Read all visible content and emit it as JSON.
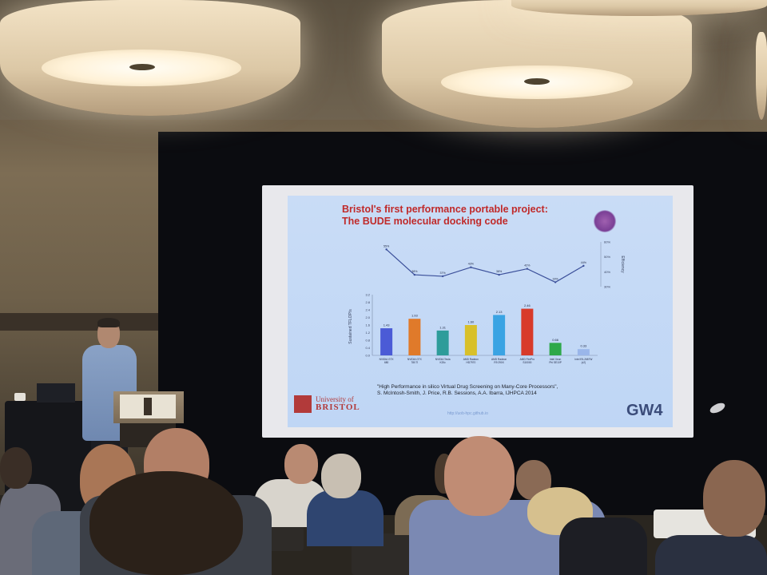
{
  "slide": {
    "title_line1": "Bristol's first performance portable project:",
    "title_line2": "The BUDE molecular docking code",
    "citation_line1": "\"High Performance in silico Virtual Drug Screening on Many-Core Processors\",",
    "citation_line2": "S. McIntosh-Smith, J. Price, R.B. Sessions, A.A. Ibarra, IJHPCA 2014",
    "logo_left_line1": "University of",
    "logo_left_line2": "BRISTOL",
    "logo_right": "GW4",
    "url": "http://uob-hpc.github.io"
  },
  "chart_data": [
    {
      "type": "bar",
      "ylabel": "Sustained TFLOP/s",
      "ylim": [
        0,
        3.2
      ],
      "yticks": [
        "0.0",
        "0.4",
        "0.8",
        "1.2",
        "1.6",
        "2.0",
        "2.4",
        "2.8",
        "3.2"
      ],
      "categories": [
        "NVIDIA GTX 680",
        "NVIDIA GTX 780 Ti",
        "NVIDIA Tesla K20c",
        "AMD Radeon HD7970",
        "AMD Radeon R9 290X",
        "AMD FirePro S10000",
        "Intel Xeon Phi SE10P",
        "Intel E5-2687W (x2)"
      ],
      "values": [
        1.43,
        1.93,
        1.31,
        1.6,
        2.13,
        2.46,
        0.66,
        0.33
      ],
      "labels": [
        "1.43",
        "1.93",
        "1.31",
        "1.60",
        "2.13",
        "2.46",
        "0.66",
        "0.33"
      ],
      "colors": [
        "#4b5bd6",
        "#e07a2a",
        "#2e9c9a",
        "#d8c02a",
        "#3aa3e3",
        "#d83a2a",
        "#2ea84a",
        "#9ab6ea"
      ]
    },
    {
      "type": "line",
      "ylabel": "Efficiency",
      "ylim": [
        30,
        60
      ],
      "yticks": [
        "30%",
        "40%",
        "50%",
        "60%"
      ],
      "values": [
        55,
        38,
        37,
        43,
        38,
        42,
        33,
        44
      ],
      "labels": [
        "55%",
        "38%",
        "37%",
        "43%",
        "38%",
        "42%",
        "33%",
        "44%"
      ]
    }
  ]
}
